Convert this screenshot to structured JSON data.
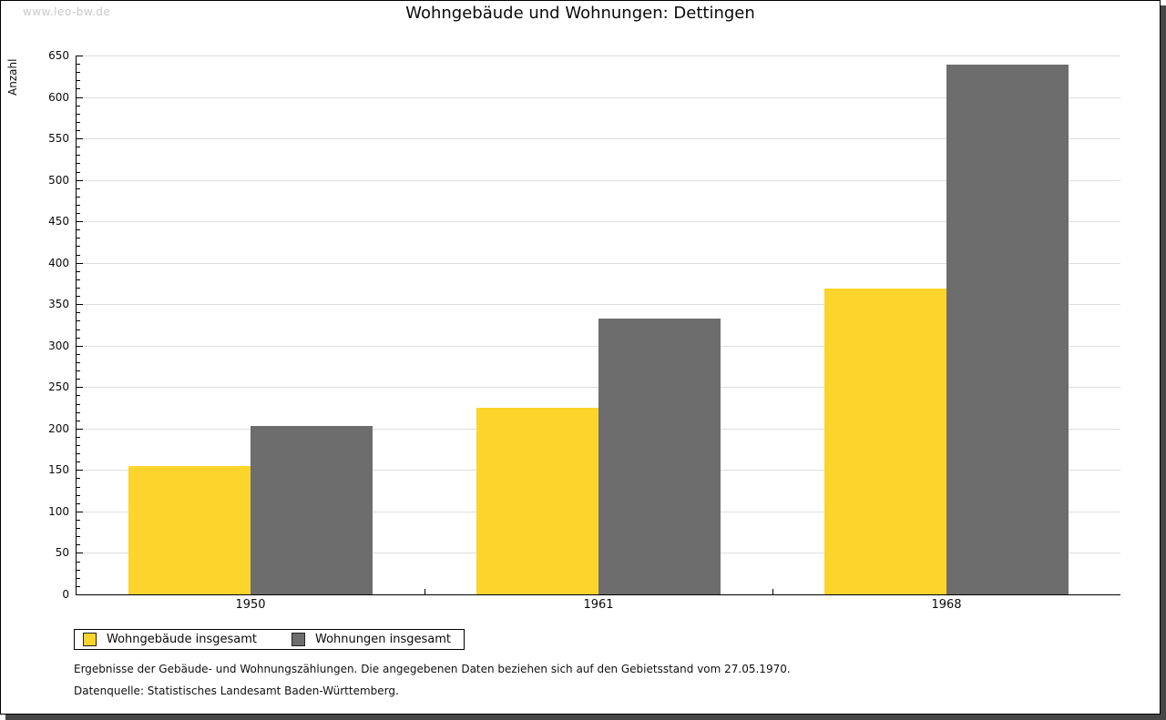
{
  "watermark": "www.leo-bw.de",
  "title": "Wohngebäude und Wohnungen: Dettingen",
  "chart_data": {
    "type": "bar",
    "title": "Wohngebäude und Wohnungen: Dettingen",
    "categories": [
      "1950",
      "1961",
      "1968"
    ],
    "series": [
      {
        "name": "Wohngebäude insgesamt",
        "color": "#FCD42C",
        "values": [
          155,
          225,
          369
        ]
      },
      {
        "name": "Wohnungen insgesamt",
        "color": "#6D6D6D",
        "values": [
          203,
          333,
          639
        ]
      }
    ],
    "xlabel": "",
    "ylabel": "Anzahl",
    "ylim": [
      0,
      650
    ],
    "ytick_step": 50,
    "yminor_step": 10,
    "grid": true,
    "gridline_color": "#dedede",
    "legend_position": "bottom-left"
  },
  "footnotes": [
    "Ergebnisse der Gebäude- und Wohnungszählungen. Die angegebenen Daten beziehen sich auf den Gebietsstand vom 27.05.1970.",
    "Datenquelle: Statistisches Landesamt Baden-Württemberg."
  ]
}
